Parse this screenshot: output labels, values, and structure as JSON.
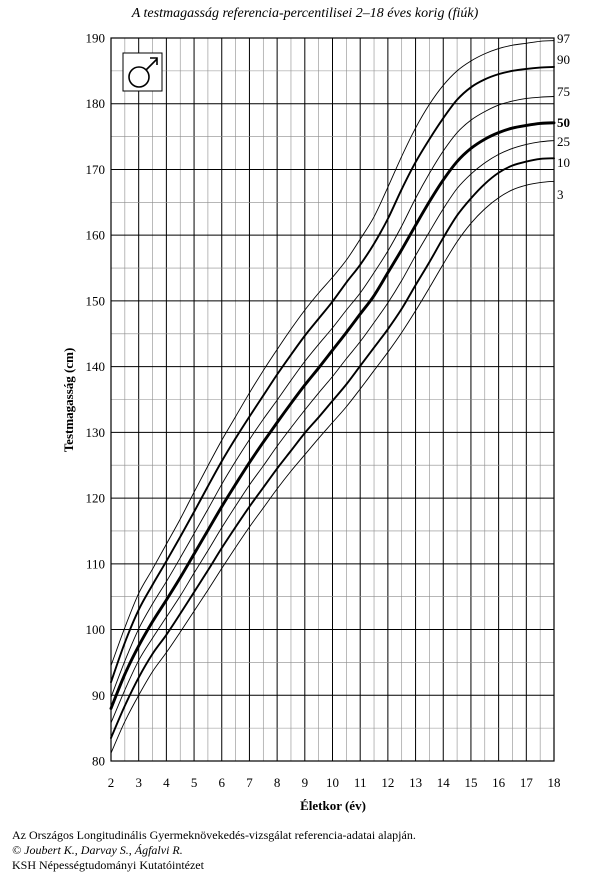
{
  "chart_data": {
    "type": "line",
    "title": "A testmagasság referencia-percentilisei 2–18 éves korig (fiúk)",
    "xlabel": "Életkor (év)",
    "ylabel": "Testmagasság (cm)",
    "xlim": [
      2,
      18
    ],
    "ylim": [
      80,
      190
    ],
    "x_ticks": [
      2,
      3,
      4,
      5,
      6,
      7,
      8,
      9,
      10,
      11,
      12,
      13,
      14,
      15,
      16,
      17,
      18
    ],
    "y_ticks": [
      80,
      90,
      100,
      110,
      120,
      130,
      140,
      150,
      160,
      170,
      180,
      190
    ],
    "grid": true,
    "x": [
      2,
      2.5,
      3,
      3.5,
      4,
      4.5,
      5,
      5.5,
      6,
      6.5,
      7,
      7.5,
      8,
      8.5,
      9,
      9.5,
      10,
      10.5,
      11,
      11.5,
      12,
      12.5,
      13,
      13.5,
      14,
      14.5,
      15,
      15.5,
      16,
      16.5,
      17,
      17.5,
      18
    ],
    "series": [
      {
        "name": "97",
        "values": [
          94.5,
          100.3,
          105.5,
          109.2,
          113.0,
          116.8,
          120.9,
          124.9,
          128.8,
          132.4,
          136.0,
          139.4,
          142.6,
          145.7,
          148.6,
          151.2,
          153.6,
          156.2,
          159.4,
          162.8,
          167.3,
          172.0,
          176.3,
          179.9,
          182.8,
          185.0,
          186.5,
          187.6,
          188.4,
          188.9,
          189.2,
          189.5,
          189.6
        ]
      },
      {
        "name": "90",
        "values": [
          92.0,
          98.0,
          103.0,
          106.8,
          110.4,
          114.1,
          117.9,
          121.8,
          125.6,
          129.1,
          132.4,
          135.6,
          138.8,
          141.8,
          144.7,
          147.3,
          149.9,
          152.8,
          155.5,
          158.7,
          162.5,
          167.0,
          171.1,
          174.6,
          177.8,
          180.6,
          182.5,
          183.7,
          184.5,
          185.0,
          185.3,
          185.5,
          185.6
        ]
      },
      {
        "name": "75",
        "values": [
          89.7,
          95.2,
          100.1,
          103.9,
          107.3,
          110.9,
          114.6,
          118.3,
          122.1,
          125.6,
          128.9,
          132.0,
          134.9,
          137.9,
          140.8,
          143.4,
          145.9,
          148.6,
          151.2,
          154.3,
          157.6,
          161.4,
          165.6,
          169.4,
          172.8,
          175.6,
          177.5,
          178.8,
          179.8,
          180.4,
          180.8,
          181.0,
          181.1
        ]
      },
      {
        "name": "50",
        "values": [
          88.0,
          93.2,
          97.5,
          101.2,
          104.5,
          107.9,
          111.5,
          115.1,
          118.7,
          122.1,
          125.4,
          128.5,
          131.5,
          134.4,
          137.2,
          139.8,
          142.5,
          145.2,
          148.0,
          150.8,
          154.3,
          157.8,
          161.5,
          165.1,
          168.4,
          171.2,
          173.2,
          174.6,
          175.6,
          176.3,
          176.7,
          177.0,
          177.1
        ]
      },
      {
        "name": "25",
        "values": [
          85.8,
          90.8,
          95.3,
          98.7,
          101.9,
          105.1,
          108.6,
          112.0,
          115.5,
          118.8,
          122.0,
          124.9,
          127.9,
          130.7,
          133.4,
          136.0,
          138.5,
          141.2,
          143.8,
          146.7,
          149.7,
          153.1,
          156.9,
          160.5,
          164.0,
          167.1,
          169.3,
          171.0,
          172.3,
          173.2,
          173.8,
          174.2,
          174.4
        ]
      },
      {
        "name": "10",
        "values": [
          83.5,
          88.4,
          92.7,
          96.3,
          99.2,
          102.4,
          105.7,
          109.0,
          112.4,
          115.6,
          118.7,
          121.6,
          124.5,
          127.2,
          129.9,
          132.3,
          134.8,
          137.3,
          140.1,
          142.9,
          145.7,
          148.8,
          152.4,
          155.9,
          159.6,
          163.0,
          165.6,
          167.8,
          169.5,
          170.6,
          171.2,
          171.6,
          171.7
        ]
      },
      {
        "name": "3",
        "values": [
          81.2,
          86.0,
          90.0,
          93.6,
          96.5,
          99.6,
          102.8,
          106.0,
          109.3,
          112.5,
          115.6,
          118.5,
          121.4,
          124.1,
          126.6,
          129.1,
          131.5,
          133.9,
          136.6,
          139.4,
          142.2,
          145.2,
          148.5,
          152.0,
          155.6,
          159.0,
          161.8,
          164.0,
          165.7,
          166.9,
          167.6,
          168.0,
          168.2
        ]
      }
    ],
    "bold_series": [
      "50"
    ]
  },
  "symbol_icon": "male-symbol-icon",
  "footer": {
    "line1": "Az Országos Longitudinális Gyermeknövekedés-vizsgálat referencia-adatai alapján.",
    "line2": "© Joubert K., Darvay S., Ágfalvi R.",
    "line3": "KSH Népességtudományi Kutatóintézet"
  }
}
